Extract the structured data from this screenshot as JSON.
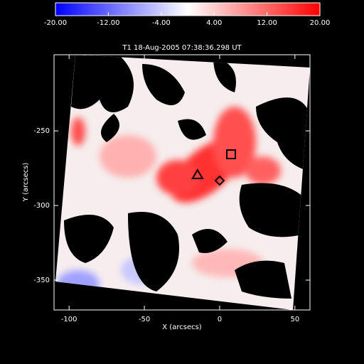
{
  "chart_data": {
    "type": "image",
    "title": "T1  18-Aug-2005 07:38:36.298 UT",
    "x_label": "X (arcsecs)",
    "y_label": "Y (arcsecs)",
    "xlim": [
      -110,
      60
    ],
    "ylim": [
      -370,
      -199
    ],
    "xticks": [
      -100,
      -50,
      0,
      50
    ],
    "yticks": [
      -250,
      -300,
      -350
    ],
    "colorbar": {
      "lim": [
        -20,
        20
      ],
      "colors": [
        "#0000ff",
        "#ffffff",
        "#ff0000"
      ],
      "ticks": [
        {
          "value": -20,
          "label": "-20.00"
        },
        {
          "value": -12,
          "label": "-12.00"
        },
        {
          "value": -4,
          "label": "-4.00"
        },
        {
          "value": 4,
          "label": "4.00"
        },
        {
          "value": 12,
          "label": "12.00"
        },
        {
          "value": 20,
          "label": "20.00"
        }
      ]
    },
    "markers": {
      "x": [
        -14.7,
        7.6,
        0
      ],
      "y": [
        -279.5,
        -265.7,
        -283.3
      ],
      "shapes": [
        "triangle",
        "square",
        "diamond"
      ]
    }
  }
}
